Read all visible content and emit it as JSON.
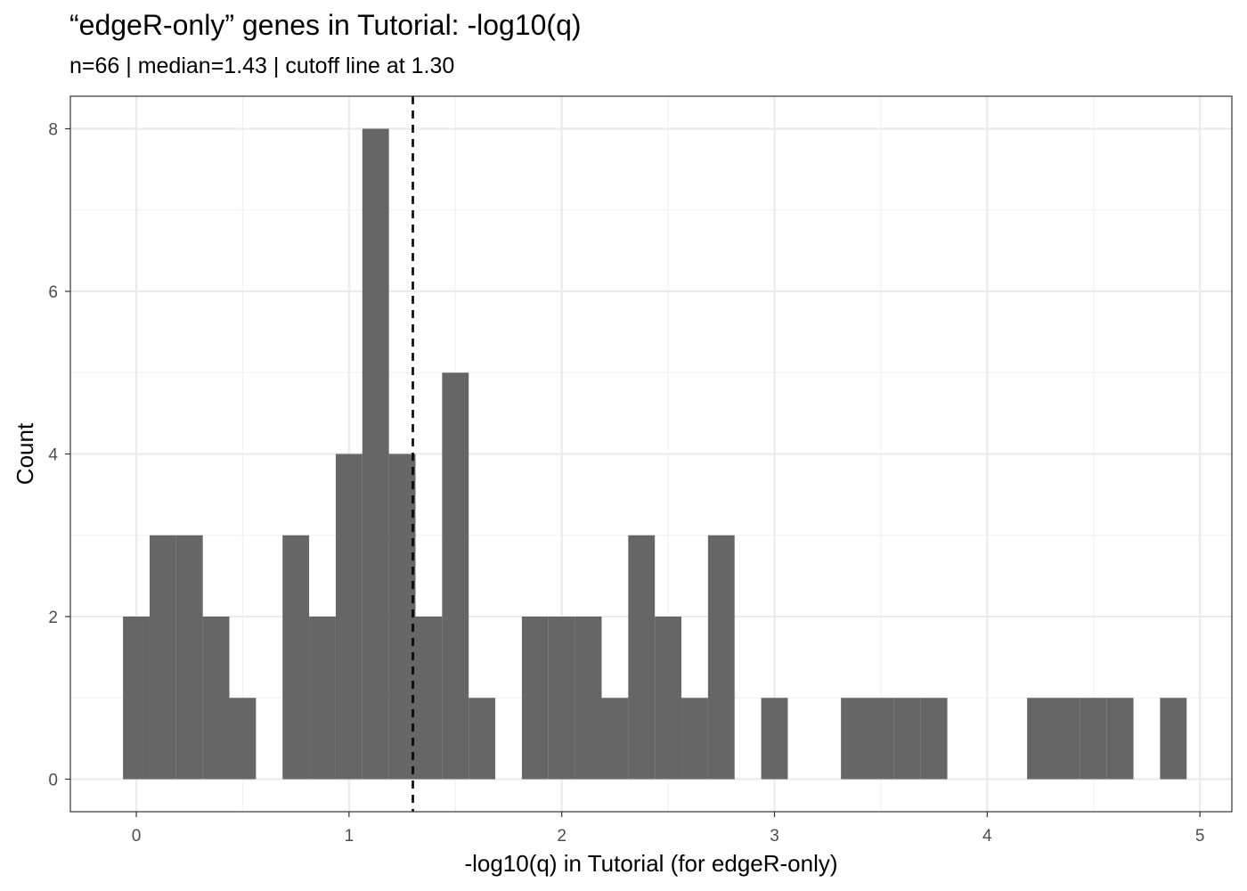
{
  "chart_data": {
    "type": "bar",
    "title": "“edgeR-only” genes in Tutorial: -log10(q)",
    "subtitle": "n=66 | median=1.43 | cutoff line at 1.30",
    "xlabel": "-log10(q) in Tutorial (for edgeR-only)",
    "ylabel": "Count",
    "xlim": [
      -0.31,
      5.15
    ],
    "ylim": [
      -0.4,
      8.4
    ],
    "x_ticks": [
      "0",
      "1",
      "2",
      "3",
      "4",
      "5"
    ],
    "y_ticks": [
      "0",
      "2",
      "4",
      "6",
      "8"
    ],
    "bin_width": 0.125,
    "bin_centers": [
      0.0,
      0.125,
      0.25,
      0.375,
      0.5,
      0.625,
      0.75,
      0.875,
      1.0,
      1.125,
      1.25,
      1.375,
      1.5,
      1.625,
      1.75,
      1.875,
      2.0,
      2.125,
      2.25,
      2.375,
      2.5,
      2.625,
      2.75,
      2.875,
      3.0,
      3.125,
      3.25,
      3.375,
      3.5,
      3.625,
      3.75,
      3.875,
      4.0,
      4.125,
      4.25,
      4.375,
      4.5,
      4.625,
      4.75,
      4.875
    ],
    "values": [
      2,
      3,
      3,
      2,
      1,
      0,
      3,
      2,
      4,
      8,
      4,
      2,
      5,
      1,
      0,
      2,
      2,
      2,
      1,
      3,
      2,
      1,
      3,
      0,
      1,
      0,
      0,
      1,
      1,
      1,
      1,
      0,
      0,
      0,
      1,
      1,
      1,
      1,
      0,
      1
    ],
    "cutoff": 1.3,
    "grid": true,
    "legend": "none",
    "bar_color": "#666666",
    "cutoff_color": "#000000"
  }
}
